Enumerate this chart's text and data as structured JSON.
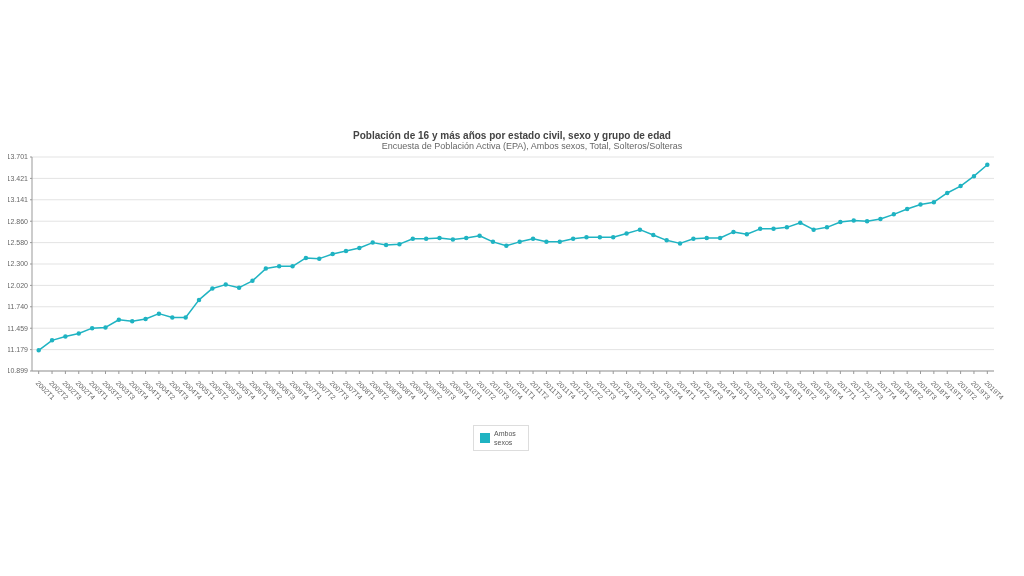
{
  "chart_data": {
    "type": "line",
    "title": "Población de 16 y más años por estado civil, sexo y grupo de edad",
    "subtitle": "Encuesta de Población Activa (EPA), Ambos sexos, Total, Solteros/Solteras",
    "categories": [
      "2002T1",
      "2002T2",
      "2002T3",
      "2002T4",
      "2003T1",
      "2003T2",
      "2003T3",
      "2003T4",
      "2004T1",
      "2004T2",
      "2004T3",
      "2004T4",
      "2005T1",
      "2005T2",
      "2005T3",
      "2005T4",
      "2006T1",
      "2006T2",
      "2006T3",
      "2006T4",
      "2007T1",
      "2007T2",
      "2007T3",
      "2007T4",
      "2008T1",
      "2008T2",
      "2008T3",
      "2008T4",
      "2009T1",
      "2009T2",
      "2009T3",
      "2009T4",
      "2010T1",
      "2010T2",
      "2010T3",
      "2010T4",
      "2011T1",
      "2011T2",
      "2011T3",
      "2011T4",
      "2012T1",
      "2012T2",
      "2012T3",
      "2012T4",
      "2013T1",
      "2013T2",
      "2013T3",
      "2013T4",
      "2014T1",
      "2014T2",
      "2014T3",
      "2014T4",
      "2015T1",
      "2015T2",
      "2015T3",
      "2015T4",
      "2016T1",
      "2016T2",
      "2016T3",
      "2016T4",
      "2017T1",
      "2017T2",
      "2017T3",
      "2017T4",
      "2018T1",
      "2018T2",
      "2018T3",
      "2018T4",
      "2019T1",
      "2019T2",
      "2019T3",
      "2019T4"
    ],
    "series": [
      {
        "name": "Ambos sexos",
        "color": "#1fb3c2",
        "values": [
          11170,
          11300,
          11350,
          11390,
          11460,
          11470,
          11570,
          11550,
          11580,
          11650,
          11600,
          11600,
          11830,
          11980,
          12030,
          11990,
          12080,
          12240,
          12270,
          12270,
          12380,
          12370,
          12430,
          12470,
          12510,
          12580,
          12550,
          12560,
          12630,
          12630,
          12640,
          12620,
          12640,
          12670,
          12590,
          12540,
          12590,
          12630,
          12590,
          12590,
          12630,
          12650,
          12650,
          12650,
          12700,
          12750,
          12680,
          12610,
          12570,
          12630,
          12640,
          12640,
          12720,
          12690,
          12760,
          12760,
          12780,
          12840,
          12750,
          12780,
          12850,
          12870,
          12860,
          12890,
          12950,
          13020,
          13080,
          13110,
          13230,
          13320,
          13450,
          13600
        ]
      }
    ],
    "ylim": [
      10899,
      13701
    ],
    "yticks": [
      {
        "value": 10899,
        "label": "10.899"
      },
      {
        "value": 11179,
        "label": "11.179"
      },
      {
        "value": 11459,
        "label": "11.459"
      },
      {
        "value": 11740,
        "label": "11.740"
      },
      {
        "value": 12020,
        "label": "12.020"
      },
      {
        "value": 12300,
        "label": "12.300"
      },
      {
        "value": 12580,
        "label": "12.580"
      },
      {
        "value": 12860,
        "label": "12.860"
      },
      {
        "value": 13141,
        "label": "13.141"
      },
      {
        "value": 13421,
        "label": "13.421"
      },
      {
        "value": 13701,
        "label": "13.701"
      }
    ],
    "grid": "y",
    "legend": "bottom",
    "marker": "circle"
  }
}
